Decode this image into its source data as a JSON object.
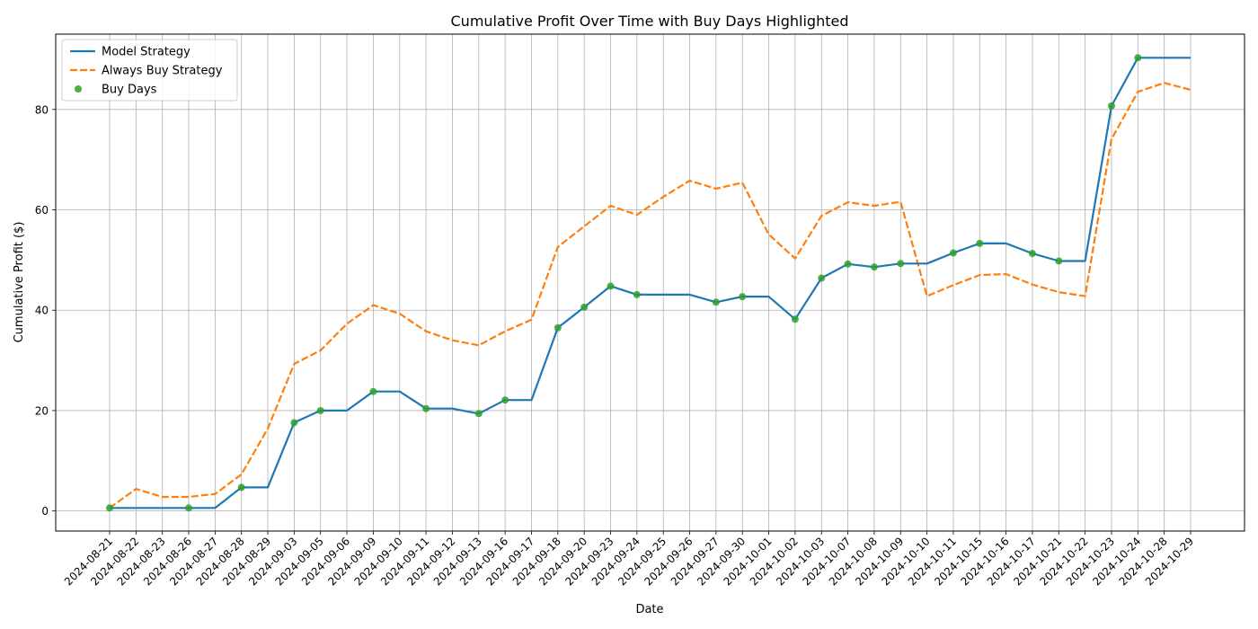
{
  "chart_data": {
    "type": "line",
    "title": "Cumulative Profit Over Time with Buy Days Highlighted",
    "xlabel": "Date",
    "ylabel": "Cumulative Profit ($)",
    "ylim": [
      -4,
      95
    ],
    "yticks": [
      0,
      20,
      40,
      60,
      80
    ],
    "grid": true,
    "legend_position": "top-left",
    "categories": [
      "2024-08-21",
      "2024-08-22",
      "2024-08-23",
      "2024-08-26",
      "2024-08-27",
      "2024-08-28",
      "2024-08-29",
      "2024-09-03",
      "2024-09-05",
      "2024-09-06",
      "2024-09-09",
      "2024-09-10",
      "2024-09-11",
      "2024-09-12",
      "2024-09-13",
      "2024-09-16",
      "2024-09-17",
      "2024-09-18",
      "2024-09-20",
      "2024-09-23",
      "2024-09-24",
      "2024-09-25",
      "2024-09-26",
      "2024-09-27",
      "2024-09-30",
      "2024-10-01",
      "2024-10-02",
      "2024-10-03",
      "2024-10-07",
      "2024-10-08",
      "2024-10-09",
      "2024-10-10",
      "2024-10-11",
      "2024-10-15",
      "2024-10-16",
      "2024-10-17",
      "2024-10-21",
      "2024-10-22",
      "2024-10-23",
      "2024-10-24",
      "2024-10-28",
      "2024-10-29"
    ],
    "series": [
      {
        "name": "Model Strategy",
        "style": "solid",
        "color": "#1f77b4",
        "values": [
          0.6,
          0.6,
          0.6,
          0.6,
          0.6,
          4.7,
          4.7,
          17.6,
          20.0,
          20.0,
          23.8,
          23.8,
          20.4,
          20.4,
          19.4,
          22.1,
          22.1,
          36.5,
          40.6,
          44.8,
          43.1,
          43.1,
          43.1,
          41.6,
          42.7,
          42.7,
          38.2,
          46.4,
          49.2,
          48.6,
          49.3,
          49.3,
          51.4,
          53.3,
          53.3,
          51.3,
          49.8,
          49.8,
          80.7,
          90.3,
          90.3,
          90.3
        ]
      },
      {
        "name": "Always Buy Strategy",
        "style": "dashed",
        "color": "#ff7f0e",
        "values": [
          0.6,
          4.4,
          2.8,
          2.8,
          3.4,
          7.3,
          16.4,
          29.3,
          32.0,
          37.3,
          41.0,
          39.3,
          35.8,
          34.0,
          33.0,
          35.8,
          38.1,
          52.6,
          56.7,
          60.8,
          59.0,
          62.6,
          65.8,
          64.2,
          65.4,
          55.1,
          50.3,
          58.8,
          61.5,
          60.8,
          61.6,
          42.8,
          45.0,
          47.0,
          47.2,
          45.1,
          43.6,
          42.8,
          74.1,
          83.5,
          85.3,
          83.9
        ]
      },
      {
        "name": "Buy Days",
        "style": "markers",
        "color": "#2ca02c",
        "x": [
          "2024-08-21",
          "2024-08-26",
          "2024-08-28",
          "2024-09-03",
          "2024-09-05",
          "2024-09-09",
          "2024-09-11",
          "2024-09-13",
          "2024-09-16",
          "2024-09-18",
          "2024-09-20",
          "2024-09-23",
          "2024-09-24",
          "2024-09-27",
          "2024-09-30",
          "2024-10-02",
          "2024-10-03",
          "2024-10-07",
          "2024-10-08",
          "2024-10-09",
          "2024-10-11",
          "2024-10-15",
          "2024-10-17",
          "2024-10-21",
          "2024-10-23",
          "2024-10-24"
        ],
        "values": [
          0.6,
          0.6,
          4.7,
          17.6,
          20.0,
          23.8,
          20.4,
          19.4,
          22.1,
          36.5,
          40.6,
          44.8,
          43.1,
          41.6,
          42.7,
          38.2,
          46.4,
          49.2,
          48.6,
          49.3,
          51.4,
          53.3,
          51.3,
          49.8,
          80.7,
          90.3
        ]
      }
    ]
  }
}
